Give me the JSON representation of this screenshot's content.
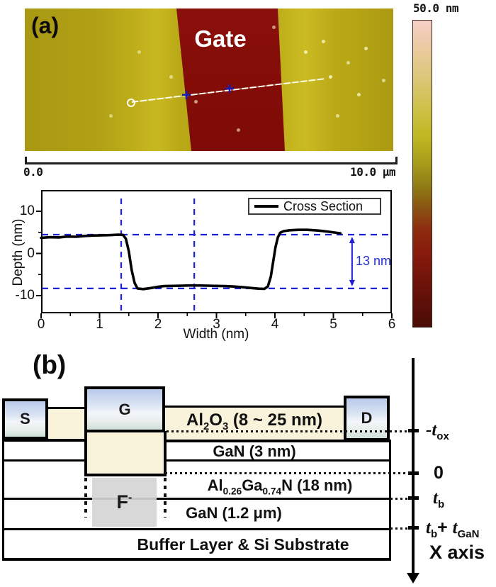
{
  "colors": {
    "dashed_blue": "#1f1fd6",
    "annotation_blue": "#2230cc",
    "gate_red": "#850d08",
    "afm_background": "#b2a114",
    "afm_bright_band": "#c8b820",
    "oxide_cream": "#faf3dc",
    "contact_blue": "#bccbe9",
    "fluorine_gray": "#d5d5d5",
    "colorbar_top": "#f7cfc7",
    "colorbar_mid": "#bfb722",
    "colorbar_bottom": "#4a0c06"
  },
  "panel_a": {
    "label": "(a)",
    "gate_label": "Gate",
    "scale_left": "0.0",
    "scale_right": "10.0 μm",
    "colorbar_label": "50.0 nm",
    "marker_glyph": "+"
  },
  "chart_data": {
    "type": "line",
    "title": "",
    "xlabel": "Width (nm)",
    "ylabel": "Depth (nm)",
    "xlim": [
      0,
      6
    ],
    "ylim": [
      -15,
      15
    ],
    "xticks": [
      0,
      1,
      2,
      3,
      4,
      5,
      6
    ],
    "xticks_minor": [
      0.5,
      1.5,
      2.5,
      3.5,
      4.5,
      5.5
    ],
    "yticks": [
      10,
      0,
      -10
    ],
    "yticks_minor": [
      5,
      -5
    ],
    "grid": false,
    "legend": "Cross Section",
    "legend_position": "top-right",
    "series": [
      {
        "name": "Cross Section",
        "points": [
          [
            0,
            3.7
          ],
          [
            0.15,
            3.85
          ],
          [
            0.3,
            3.8
          ],
          [
            0.45,
            4.0
          ],
          [
            0.6,
            3.95
          ],
          [
            0.75,
            4.15
          ],
          [
            0.9,
            4.25
          ],
          [
            1.05,
            4.3
          ],
          [
            1.2,
            4.35
          ],
          [
            1.32,
            4.45
          ],
          [
            1.4,
            4.4
          ],
          [
            1.45,
            3.5
          ],
          [
            1.5,
            0.5
          ],
          [
            1.55,
            -4.0
          ],
          [
            1.6,
            -7.0
          ],
          [
            1.65,
            -8.3
          ],
          [
            1.75,
            -8.45
          ],
          [
            1.88,
            -8.2
          ],
          [
            2.0,
            -7.9
          ],
          [
            2.1,
            -7.75
          ],
          [
            2.25,
            -7.7
          ],
          [
            2.4,
            -7.65
          ],
          [
            2.55,
            -7.6
          ],
          [
            2.7,
            -7.6
          ],
          [
            2.85,
            -7.65
          ],
          [
            3.0,
            -7.7
          ],
          [
            3.15,
            -7.75
          ],
          [
            3.3,
            -7.85
          ],
          [
            3.45,
            -8.0
          ],
          [
            3.6,
            -8.2
          ],
          [
            3.72,
            -8.35
          ],
          [
            3.82,
            -8.4
          ],
          [
            3.88,
            -7.8
          ],
          [
            3.93,
            -5.5
          ],
          [
            3.97,
            -2.0
          ],
          [
            4.01,
            1.5
          ],
          [
            4.05,
            3.8
          ],
          [
            4.09,
            4.9
          ],
          [
            4.15,
            5.3
          ],
          [
            4.25,
            5.5
          ],
          [
            4.4,
            5.6
          ],
          [
            4.55,
            5.6
          ],
          [
            4.68,
            5.5
          ],
          [
            4.8,
            5.35
          ],
          [
            4.92,
            5.15
          ],
          [
            5.02,
            4.95
          ],
          [
            5.12,
            4.75
          ]
        ]
      }
    ],
    "annotations": {
      "h_dashed_depths": [
        4.45,
        -8.3
      ],
      "v_dashed_widths": [
        1.37,
        2.62
      ],
      "arrow": {
        "x": 5.32,
        "top": 4.45,
        "bottom": -8.3
      },
      "depth_label": "13 nm",
      "step_height_nm": 13
    }
  },
  "panel_b": {
    "label": "(b)",
    "contacts": [
      {
        "label": "S"
      },
      {
        "label": "G"
      },
      {
        "label": "D"
      }
    ],
    "layers": {
      "oxide": {
        "p1": "Al",
        "s1": "2",
        "p2": "O",
        "s2": "3",
        "p3": " (8 ~ 25 nm)"
      },
      "gan_cap": {
        "text": "GaN (3 nm)"
      },
      "algan": {
        "p1": "Al",
        "s1": "0.26",
        "p2": "Ga",
        "s2": "0.74",
        "p3": "N (18 nm)"
      },
      "gan_buffer": {
        "text": "GaN (1.2 μm)"
      },
      "substrate": {
        "text": "Buffer Layer & Si Substrate"
      }
    },
    "fluorine": {
      "main": "F",
      "sup": "-"
    },
    "axis": {
      "tox": {
        "main": "-t",
        "sub": "ox"
      },
      "zero": "0",
      "tb": {
        "main": "t",
        "sub": "b"
      },
      "tb_tgan": {
        "t1": "t",
        "s1": "b",
        "plus": "+ ",
        "t2": "t",
        "s2": "GaN"
      },
      "x_axis_label": "X axis"
    }
  }
}
